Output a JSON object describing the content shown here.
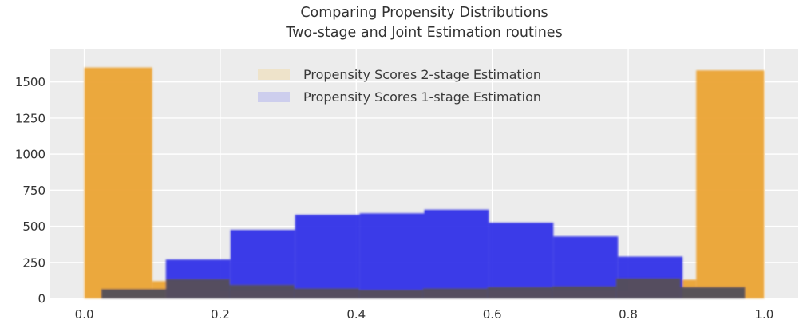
{
  "title": {
    "line1": "Comparing Propensity Distributions",
    "line2": "Two-stage and Joint Estimation routines",
    "color": "#333333"
  },
  "legend": {
    "items": [
      {
        "label": "Propensity Scores 2-stage Estimation",
        "swatch_color": "#eee3ca"
      },
      {
        "label": "Propensity Scores 1-stage Estimation",
        "swatch_color": "#cdceed"
      }
    ]
  },
  "chart_data": {
    "type": "bar",
    "subtype": "overlaid-histograms",
    "title": "Comparing Propensity Distributions Two-stage and Joint Estimation routines",
    "xlabel": "",
    "ylabel": "",
    "plot_bg_color": "#ececec",
    "grid_color": "#ffffff",
    "grid": "on",
    "text_color": "#333333",
    "legend_position": "upper center, frameless",
    "xlim": [
      -0.05,
      1.05
    ],
    "ylim": [
      0,
      1725
    ],
    "x_ticks": [
      {
        "label": "0.0",
        "value": 0.0
      },
      {
        "label": "0.2",
        "value": 0.2
      },
      {
        "label": "0.4",
        "value": 0.4
      },
      {
        "label": "0.6",
        "value": 0.6
      },
      {
        "label": "0.8",
        "value": 0.8
      },
      {
        "label": "1.0",
        "value": 1.0
      }
    ],
    "y_ticks": [
      {
        "label": "0",
        "value": 0
      },
      {
        "label": "250",
        "value": 250
      },
      {
        "label": "500",
        "value": 500
      },
      {
        "label": "750",
        "value": 750
      },
      {
        "label": "1000",
        "value": 1000
      },
      {
        "label": "1250",
        "value": 1250
      },
      {
        "label": "1500",
        "value": 1500
      }
    ],
    "series": [
      {
        "name": "Propensity Scores 2-stage Estimation",
        "color": "#eba437",
        "opacity": 0.96,
        "bin_edges": [
          0.0,
          0.1,
          0.2,
          0.3,
          0.4,
          0.5,
          0.6,
          0.7,
          0.8,
          0.9,
          1.0
        ],
        "counts": [
          1600,
          120,
          50,
          50,
          50,
          50,
          50,
          50,
          130,
          1580
        ]
      },
      {
        "name": "Propensity Scores 1-stage Estimation",
        "color": "#3030e8",
        "opacity": 0.94,
        "bin_edges": [
          0.12,
          0.215,
          0.31,
          0.405,
          0.5,
          0.595,
          0.69,
          0.785,
          0.88
        ],
        "counts": [
          270,
          475,
          580,
          590,
          615,
          525,
          430,
          290
        ]
      },
      {
        "name": "unlabeled dark overlap band",
        "color": "#55505a",
        "opacity": 0.97,
        "bin_edges": [
          0.025,
          0.12,
          0.214,
          0.309,
          0.404,
          0.498,
          0.593,
          0.688,
          0.782,
          0.877,
          0.972
        ],
        "counts": [
          65,
          135,
          95,
          70,
          60,
          70,
          80,
          85,
          140,
          80
        ]
      }
    ]
  }
}
